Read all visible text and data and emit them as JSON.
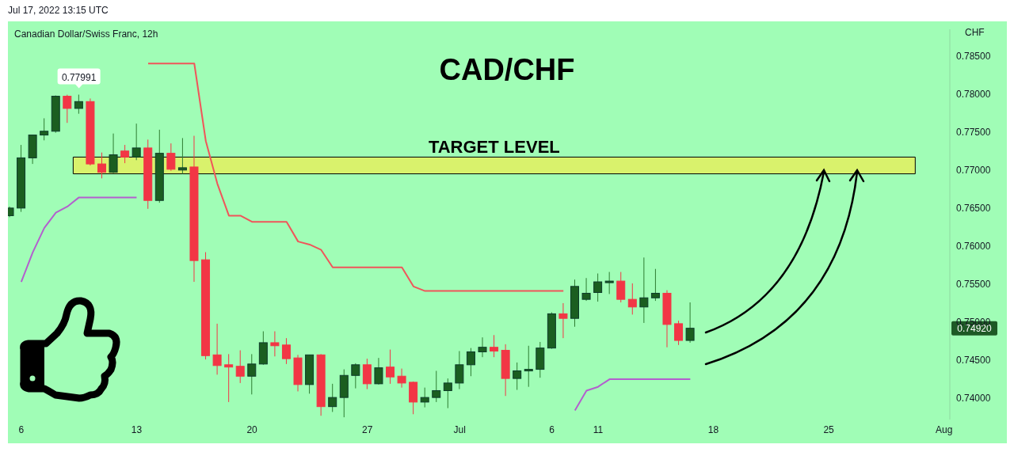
{
  "chart_data": {
    "type": "candlestick",
    "title": "CAD/CHF",
    "subtitle": "Canadian Dollar/Swiss Franc, 12h",
    "ylabel": "CHF",
    "annotations": [
      "Jul 17, 2022 13:15 UTC",
      {
        "text": "0.77991",
        "y": 0.77991
      },
      "0.74920"
    ],
    "categories": [
      null,
      "6",
      null,
      null,
      null,
      null,
      null,
      null,
      null,
      null,
      null,
      "13",
      null,
      null,
      null,
      null,
      null,
      null,
      null,
      null,
      null,
      "20",
      null,
      null,
      null,
      null,
      null,
      null,
      null,
      null,
      null,
      "27",
      null,
      null,
      null,
      null,
      null,
      null,
      null,
      "Jul",
      null,
      null,
      null,
      null,
      null,
      null,
      null,
      "6",
      null,
      null,
      null,
      "11",
      null,
      null,
      null,
      null,
      null,
      null,
      null,
      null,
      null,
      "18",
      null,
      null,
      null,
      null,
      null,
      null,
      null,
      null,
      null,
      "25",
      null,
      null,
      null,
      null,
      null,
      null,
      null,
      null,
      null,
      "Aug"
    ],
    "ohlc": [
      [
        0.764,
        0.7652,
        0.7638,
        0.765
      ],
      [
        0.765,
        0.7733,
        0.7645,
        0.7716
      ],
      [
        0.7716,
        0.7746,
        0.7708,
        0.7746
      ],
      [
        0.7746,
        0.7768,
        0.7739,
        0.7751
      ],
      [
        0.7751,
        0.7798,
        0.7749,
        0.7797
      ],
      [
        0.7797,
        0.7799,
        0.7762,
        0.7781
      ],
      [
        0.7781,
        0.77991,
        0.7774,
        0.779
      ],
      [
        0.779,
        0.7794,
        0.7706,
        0.7708
      ],
      [
        0.7708,
        0.7723,
        0.7689,
        0.7697
      ],
      [
        0.7697,
        0.7748,
        0.7696,
        0.772
      ],
      [
        0.7725,
        0.7733,
        0.7709,
        0.7717
      ],
      [
        0.7717,
        0.7761,
        0.7713,
        0.7729
      ],
      [
        0.7729,
        0.774,
        0.7649,
        0.766
      ],
      [
        0.766,
        0.7753,
        0.7657,
        0.7722
      ],
      [
        0.7722,
        0.7735,
        0.7699,
        0.7701
      ],
      [
        0.77,
        0.7742,
        0.7695,
        0.7703
      ],
      [
        0.7704,
        0.7745,
        0.7553,
        0.7581
      ],
      [
        0.7582,
        0.7592,
        0.7451,
        0.7456
      ],
      [
        0.7457,
        0.7498,
        0.7431,
        0.7443
      ],
      [
        0.7444,
        0.7458,
        0.7395,
        0.7441
      ],
      [
        0.7442,
        0.7463,
        0.742,
        0.7429
      ],
      [
        0.7429,
        0.7458,
        0.7405,
        0.7445
      ],
      [
        0.7445,
        0.7488,
        0.7444,
        0.7473
      ],
      [
        0.7473,
        0.7488,
        0.7455,
        0.7469
      ],
      [
        0.747,
        0.7479,
        0.7445,
        0.7452
      ],
      [
        0.7453,
        0.7457,
        0.7409,
        0.7418
      ],
      [
        0.7418,
        0.7457,
        0.7406,
        0.7457
      ],
      [
        0.7457,
        0.7458,
        0.7377,
        0.7389
      ],
      [
        0.7389,
        0.7419,
        0.7382,
        0.7401
      ],
      [
        0.7401,
        0.7438,
        0.7375,
        0.743
      ],
      [
        0.743,
        0.7446,
        0.7413,
        0.7444
      ],
      [
        0.7444,
        0.7452,
        0.7412,
        0.7419
      ],
      [
        0.7419,
        0.7453,
        0.7418,
        0.744
      ],
      [
        0.7441,
        0.7464,
        0.7419,
        0.7428
      ],
      [
        0.7429,
        0.7439,
        0.7414,
        0.742
      ],
      [
        0.7421,
        0.7422,
        0.7379,
        0.7395
      ],
      [
        0.7395,
        0.7414,
        0.7388,
        0.7401
      ],
      [
        0.7401,
        0.7436,
        0.7395,
        0.741
      ],
      [
        0.741,
        0.7426,
        0.7387,
        0.742
      ],
      [
        0.742,
        0.7462,
        0.7412,
        0.7444
      ],
      [
        0.7444,
        0.7466,
        0.7429,
        0.7461
      ],
      [
        0.7461,
        0.748,
        0.7454,
        0.7467
      ],
      [
        0.7467,
        0.7483,
        0.7454,
        0.7462
      ],
      [
        0.7463,
        0.7471,
        0.7403,
        0.7426
      ],
      [
        0.7426,
        0.7447,
        0.7411,
        0.7436
      ],
      [
        0.7436,
        0.7469,
        0.7415,
        0.7438
      ],
      [
        0.7438,
        0.7474,
        0.7427,
        0.7466
      ],
      [
        0.7466,
        0.7513,
        0.7465,
        0.7511
      ],
      [
        0.7511,
        0.7525,
        0.7479,
        0.7505
      ],
      [
        0.7505,
        0.7556,
        0.7494,
        0.7547
      ],
      [
        0.753,
        0.7558,
        0.7528,
        0.7538
      ],
      [
        0.7539,
        0.7564,
        0.7527,
        0.7553
      ],
      [
        0.7552,
        0.7566,
        0.7537,
        0.7554
      ],
      [
        0.7554,
        0.7566,
        0.7526,
        0.753
      ],
      [
        0.753,
        0.7551,
        0.751,
        0.752
      ],
      [
        0.752,
        0.7585,
        0.7499,
        0.7532
      ],
      [
        0.7532,
        0.757,
        0.7528,
        0.7538
      ],
      [
        0.7538,
        0.7542,
        0.7467,
        0.7497
      ],
      [
        0.7498,
        0.7502,
        0.747,
        0.7476
      ],
      [
        0.7476,
        0.7526,
        0.7473,
        0.7492
      ],
      null,
      null,
      null,
      null,
      null,
      null,
      null,
      null,
      null,
      null,
      null,
      null,
      null,
      null,
      null,
      null,
      null,
      null,
      null,
      null,
      null,
      null
    ],
    "series": [
      {
        "type": "line",
        "color": "#f0555a",
        "values": [
          null,
          null,
          null,
          null,
          null,
          null,
          null,
          null,
          null,
          null,
          null,
          null,
          0.784,
          0.784,
          0.784,
          0.784,
          0.784,
          0.7738,
          0.7682,
          0.764,
          0.764,
          0.7632,
          0.7632,
          0.7632,
          0.7632,
          0.7606,
          0.7602,
          0.7595,
          0.7572,
          0.7572,
          0.7572,
          0.7572,
          0.7572,
          0.7572,
          0.7572,
          0.7547,
          0.7541,
          0.7541,
          0.7541,
          0.7541,
          0.7541,
          0.7541,
          0.7541,
          0.7541,
          0.7541,
          0.7541,
          0.7541,
          0.7541,
          0.7541,
          null,
          null,
          null,
          null,
          null,
          null,
          null,
          null,
          null,
          null,
          null,
          null,
          null,
          null,
          null,
          null,
          null,
          null,
          null,
          null,
          null,
          null,
          null,
          null,
          null,
          null,
          null,
          null,
          null,
          null,
          null,
          null,
          null
        ]
      },
      {
        "type": "line",
        "color": "#b35fce",
        "values": [
          null,
          0.7553,
          0.7592,
          0.7624,
          0.7644,
          0.7652,
          0.7664,
          0.7664,
          0.7664,
          0.7664,
          0.7664,
          0.7664,
          null,
          null,
          null,
          null,
          null,
          null,
          null,
          null,
          null,
          null,
          null,
          null,
          null,
          null,
          null,
          null,
          null,
          null,
          null,
          null,
          null,
          null,
          null,
          null,
          null,
          null,
          null,
          null,
          null,
          null,
          null,
          null,
          null,
          null,
          null,
          null,
          null,
          0.7384,
          0.741,
          0.7415,
          0.7425,
          0.7425,
          0.7425,
          0.7425,
          0.7425,
          0.7425,
          0.7425,
          0.7425,
          null,
          null,
          null,
          null,
          null,
          null,
          null,
          null,
          null,
          null,
          null,
          null,
          null,
          null,
          null,
          null,
          null,
          null,
          null,
          null,
          null,
          null
        ]
      }
    ],
    "bands": [
      {
        "axis": "y",
        "from": 0.7695,
        "to": 0.7717,
        "label": "TARGET LEVEL",
        "color": "#ffeb3b"
      }
    ],
    "ylim": [
      0.7372,
      0.7885
    ],
    "yticks": [
      {
        "value": 0.74,
        "label": "0.74000"
      },
      {
        "value": 0.745,
        "label": "0.74500"
      },
      {
        "value": 0.75,
        "label": "0.75000"
      },
      {
        "value": 0.755,
        "label": "0.75500"
      },
      {
        "value": 0.76,
        "label": "0.76000"
      },
      {
        "value": 0.765,
        "label": "0.76500"
      },
      {
        "value": 0.77,
        "label": "0.77000"
      },
      {
        "value": 0.775,
        "label": "0.77500"
      },
      {
        "value": 0.78,
        "label": "0.78000"
      },
      {
        "value": 0.785,
        "label": "0.78500"
      }
    ],
    "grid": false,
    "legend": false,
    "marker": "none",
    "line_style": "solid"
  }
}
